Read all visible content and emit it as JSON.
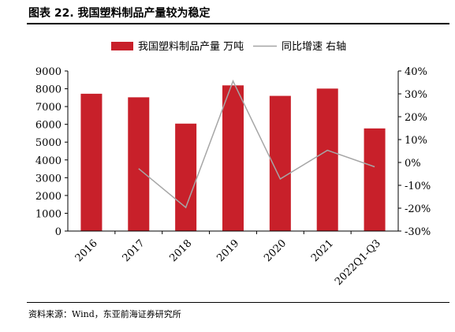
{
  "figure_title": "图表 22. 我国塑料制品产量较为稳定",
  "source": "资料来源：Wind，东亚前海证券研究所",
  "chart_data": {
    "type": "bar",
    "categories": [
      "2016",
      "2017",
      "2018",
      "2019",
      "2020",
      "2021",
      "2022Q1-Q3"
    ],
    "series": [
      {
        "name": "我国塑料制品产量 万吨",
        "type": "bar",
        "axis": "left",
        "color": "#c8202a",
        "values": [
          7720,
          7520,
          6040,
          8190,
          7600,
          8010,
          5770
        ]
      },
      {
        "name": "同比增速 右轴",
        "type": "line",
        "axis": "right",
        "color": "#a6a6a6",
        "values": [
          null,
          -2.7,
          -19.7,
          35.6,
          -7.2,
          5.3,
          -1.9
        ]
      }
    ],
    "ylim": [
      0,
      9000
    ],
    "yticks": [
      "0",
      "1000",
      "2000",
      "3000",
      "4000",
      "5000",
      "6000",
      "7000",
      "8000",
      "9000"
    ],
    "y2lim": [
      -30,
      40
    ],
    "y2ticks": [
      "-30%",
      "-20%",
      "-10%",
      "0%",
      "10%",
      "20%",
      "30%",
      "40%"
    ],
    "legend_position": "top-center",
    "grid": false
  }
}
